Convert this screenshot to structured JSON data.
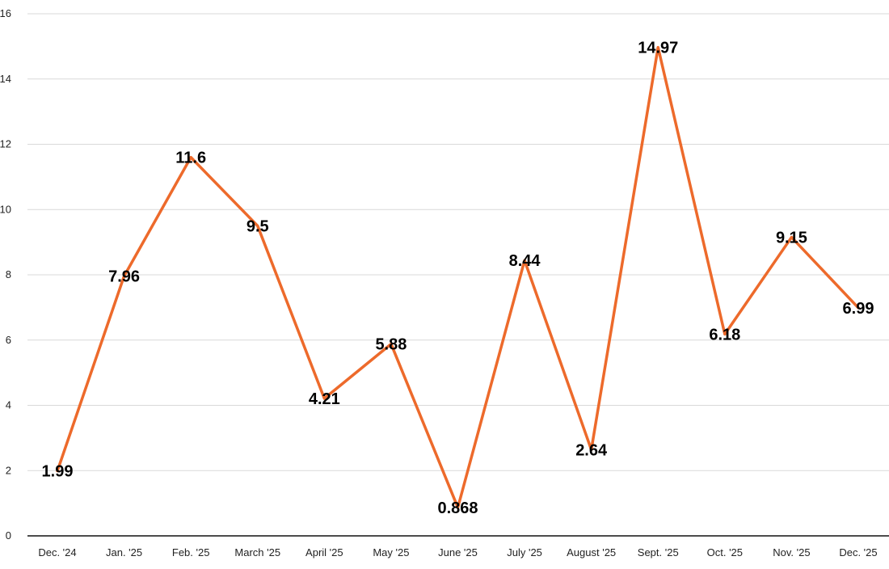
{
  "chart_data": {
    "type": "line",
    "title": "",
    "xlabel": "",
    "ylabel": "",
    "categories": [
      "Dec. '24",
      "Jan. '25",
      "Feb. '25",
      "March '25",
      "April '25",
      "May '25",
      "June '25",
      "July '25",
      "August '25",
      "Sept. '25",
      "Oct. '25",
      "Nov. '25",
      "Dec. '25"
    ],
    "series": [
      {
        "values": [
          1.99,
          7.96,
          11.6,
          9.5,
          4.21,
          5.88,
          0.868,
          8.44,
          2.64,
          14.97,
          6.18,
          9.15,
          6.99
        ],
        "labels": [
          "1.99",
          "7.96",
          "11.6",
          "9.5",
          "4.21",
          "5.88",
          "0.868",
          "8.44",
          "2.64",
          "14.97",
          "6.18",
          "9.15",
          "6.99"
        ],
        "color": "#ED6A2B"
      }
    ],
    "ylim": [
      0,
      16
    ],
    "yticks": [
      0,
      2,
      4,
      6,
      8,
      10,
      12,
      14,
      16
    ],
    "ytick_labels": [
      "0",
      "2",
      "4",
      "6",
      "8",
      "10",
      "12",
      "14",
      "16"
    ],
    "grid": true,
    "legend": "none",
    "data_labels": true
  }
}
